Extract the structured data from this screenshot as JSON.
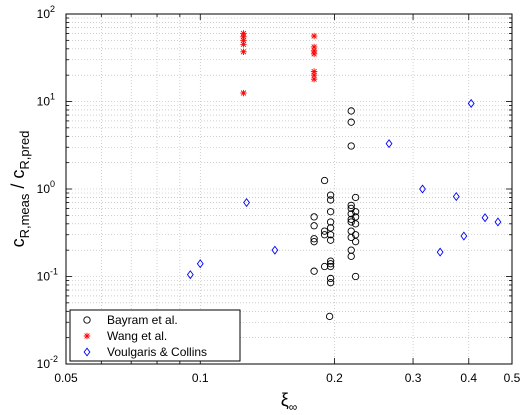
{
  "chart_data": {
    "type": "scatter",
    "title": "",
    "xlabel": "ξ",
    "xlabel_sub": "∞",
    "ylabel_main": "c",
    "ylabel_sub1": "R,meas",
    "ylabel_sep": " / c",
    "ylabel_sub2": "R,pred",
    "xscale": "log",
    "yscale": "log",
    "xlim": [
      0.05,
      0.5
    ],
    "ylim": [
      0.01,
      100
    ],
    "grid": true,
    "legend_position": "bottom-left",
    "x_ticks": [
      {
        "value": 0.05,
        "label": "0.05"
      },
      {
        "value": 0.1,
        "label": "0.1"
      },
      {
        "value": 0.2,
        "label": "0.2"
      },
      {
        "value": 0.3,
        "label": "0.3"
      },
      {
        "value": 0.4,
        "label": "0.4"
      },
      {
        "value": 0.5,
        "label": "0.5"
      }
    ],
    "y_ticks": [
      {
        "value": 0.01,
        "base": "10",
        "exp": "-2"
      },
      {
        "value": 0.1,
        "base": "10",
        "exp": "-1"
      },
      {
        "value": 1,
        "base": "10",
        "exp": "0"
      },
      {
        "value": 10,
        "base": "10",
        "exp": "1"
      },
      {
        "value": 100,
        "base": "10",
        "exp": "2"
      }
    ],
    "series": [
      {
        "name": "Bayram et al.",
        "marker": "circle",
        "color": "#000000",
        "points": [
          [
            0.18,
            0.25
          ],
          [
            0.18,
            0.27
          ],
          [
            0.18,
            0.38
          ],
          [
            0.18,
            0.48
          ],
          [
            0.18,
            0.115
          ],
          [
            0.19,
            0.3
          ],
          [
            0.19,
            0.33
          ],
          [
            0.19,
            0.13
          ],
          [
            0.19,
            1.25
          ],
          [
            0.195,
            0.035
          ],
          [
            0.196,
            0.085
          ],
          [
            0.196,
            0.095
          ],
          [
            0.196,
            0.14
          ],
          [
            0.196,
            0.13
          ],
          [
            0.196,
            0.15
          ],
          [
            0.196,
            0.26
          ],
          [
            0.196,
            0.3
          ],
          [
            0.196,
            0.36
          ],
          [
            0.196,
            0.42
          ],
          [
            0.196,
            0.55
          ],
          [
            0.196,
            0.85
          ],
          [
            0.196,
            0.75
          ],
          [
            0.218,
            7.8
          ],
          [
            0.218,
            5.8
          ],
          [
            0.218,
            3.1
          ],
          [
            0.218,
            0.65
          ],
          [
            0.218,
            0.6
          ],
          [
            0.218,
            0.52
          ],
          [
            0.218,
            0.45
          ],
          [
            0.218,
            0.42
          ],
          [
            0.218,
            0.33
          ],
          [
            0.218,
            0.28
          ],
          [
            0.218,
            0.2
          ],
          [
            0.218,
            0.17
          ],
          [
            0.223,
            0.8
          ],
          [
            0.223,
            0.55
          ],
          [
            0.223,
            0.48
          ],
          [
            0.223,
            0.4
          ],
          [
            0.223,
            0.3
          ],
          [
            0.223,
            0.25
          ],
          [
            0.223,
            0.1
          ]
        ]
      },
      {
        "name": "Wang et al.",
        "marker": "asterisk",
        "color": "#ff0000",
        "points": [
          [
            0.125,
            60
          ],
          [
            0.125,
            55
          ],
          [
            0.125,
            50
          ],
          [
            0.125,
            45
          ],
          [
            0.125,
            37
          ],
          [
            0.125,
            12.5
          ],
          [
            0.18,
            56
          ],
          [
            0.18,
            42
          ],
          [
            0.18,
            38
          ],
          [
            0.18,
            35
          ],
          [
            0.18,
            22
          ],
          [
            0.18,
            20
          ],
          [
            0.18,
            18
          ]
        ]
      },
      {
        "name": "Voulgaris & Collins",
        "marker": "diamond",
        "color": "#0000ff",
        "points": [
          [
            0.095,
            0.105
          ],
          [
            0.1,
            0.14
          ],
          [
            0.127,
            0.7
          ],
          [
            0.147,
            0.2
          ],
          [
            0.265,
            3.3
          ],
          [
            0.315,
            1.0
          ],
          [
            0.345,
            0.19
          ],
          [
            0.375,
            0.82
          ],
          [
            0.39,
            0.29
          ],
          [
            0.405,
            9.5
          ],
          [
            0.435,
            0.47
          ],
          [
            0.465,
            0.42
          ]
        ]
      }
    ]
  }
}
